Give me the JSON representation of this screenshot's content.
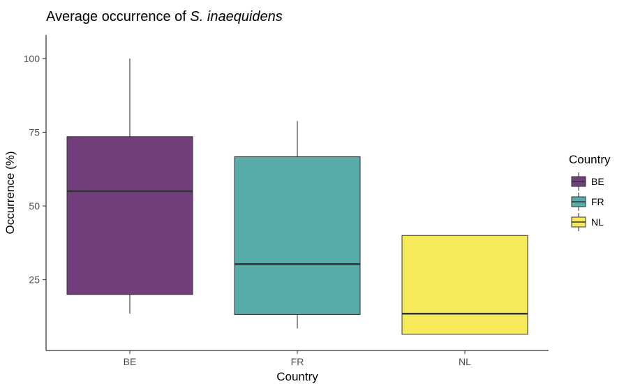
{
  "chart_data": {
    "type": "boxplot",
    "title_prefix": "Average occurrence of ",
    "title_species": "S. inaequidens",
    "xlabel": "Country",
    "ylabel": "Occurrence (%)",
    "ylim": [
      1,
      108
    ],
    "yticks": [
      25,
      50,
      75,
      100
    ],
    "grid": false,
    "legend": {
      "title": "Country",
      "position": "right"
    },
    "categories": [
      "BE",
      "FR",
      "NL"
    ],
    "boxes": [
      {
        "name": "BE",
        "min": 13.5,
        "q1": 20,
        "median": 55,
        "q3": 73.5,
        "max": 100,
        "color": "#733e7c"
      },
      {
        "name": "FR",
        "min": 8.5,
        "q1": 13.2,
        "median": 30.3,
        "q3": 66.7,
        "max": 78.8,
        "color": "#57aba9"
      },
      {
        "name": "NL",
        "min": 6.5,
        "q1": 6.5,
        "median": 13.5,
        "q3": 40,
        "max": 40,
        "color": "#f6ea5a"
      }
    ]
  }
}
